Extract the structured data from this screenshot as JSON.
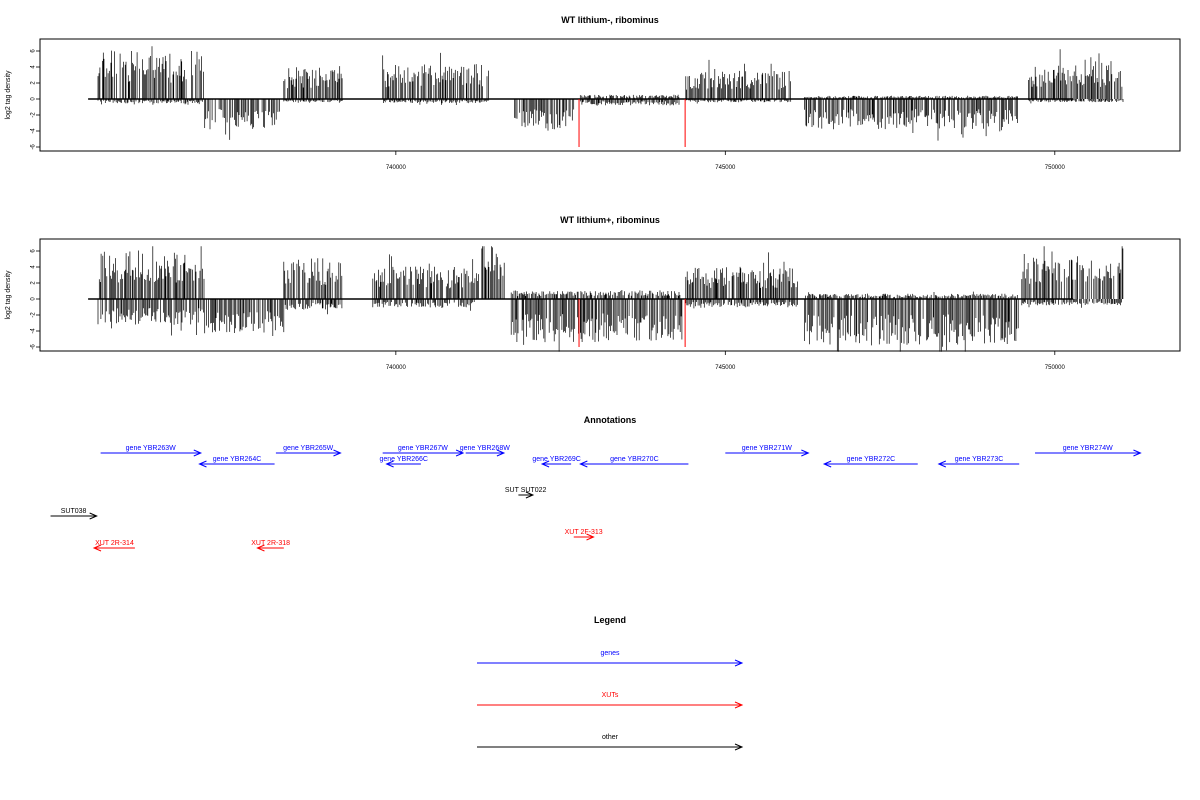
{
  "panels": [
    {
      "title": "WT lithium-, ribominus",
      "ylabel": "log2 tag density",
      "yticks": [
        "-6",
        "-4",
        "-2",
        "0",
        "2",
        "4",
        "6"
      ],
      "xticks": [
        "740000",
        "745000",
        "750000"
      ]
    },
    {
      "title": "WT lithium+, ribominus",
      "ylabel": "log2 tag density",
      "yticks": [
        "-6",
        "-4",
        "-2",
        "0",
        "2",
        "4",
        "6"
      ],
      "xticks": [
        "740000",
        "745000",
        "750000"
      ]
    }
  ],
  "annotations": {
    "title": "Annotations",
    "features": [
      {
        "label": "gene YBR263W",
        "start": 735520,
        "end": 737040,
        "strand": "+",
        "kind": "gene"
      },
      {
        "label": "gene YBR264C",
        "start": 737020,
        "end": 738160,
        "strand": "-",
        "kind": "gene"
      },
      {
        "label": "gene YBR265W",
        "start": 738180,
        "end": 739160,
        "strand": "+",
        "kind": "gene"
      },
      {
        "label": "gene YBR266C",
        "start": 739860,
        "end": 740380,
        "strand": "-",
        "kind": "gene"
      },
      {
        "label": "gene YBR267W",
        "start": 739800,
        "end": 741020,
        "strand": "+",
        "kind": "gene"
      },
      {
        "label": "gene YBR268W",
        "start": 741060,
        "end": 741640,
        "strand": "+",
        "kind": "gene"
      },
      {
        "label": "gene YBR269C",
        "start": 742220,
        "end": 742660,
        "strand": "-",
        "kind": "gene"
      },
      {
        "label": "gene YBR270C",
        "start": 742800,
        "end": 744440,
        "strand": "-",
        "kind": "gene"
      },
      {
        "label": "gene YBR271W",
        "start": 745000,
        "end": 746260,
        "strand": "+",
        "kind": "gene"
      },
      {
        "label": "gene YBR272C",
        "start": 746500,
        "end": 747920,
        "strand": "-",
        "kind": "gene"
      },
      {
        "label": "gene YBR273C",
        "start": 748240,
        "end": 749460,
        "strand": "-",
        "kind": "gene"
      },
      {
        "label": "gene YBR274W",
        "start": 749700,
        "end": 751300,
        "strand": "+",
        "kind": "gene"
      },
      {
        "label": "SUT SUT022",
        "start": 741860,
        "end": 742080,
        "strand": "+",
        "kind": "other"
      },
      {
        "label": "SUT038",
        "start": 734760,
        "end": 735460,
        "strand": "+",
        "kind": "other"
      },
      {
        "label": "XUT 2R-314",
        "start": 735420,
        "end": 736040,
        "strand": "-",
        "kind": "XUT"
      },
      {
        "label": "XUT 2R-318",
        "start": 737900,
        "end": 738300,
        "strand": "-",
        "kind": "XUT"
      },
      {
        "label": "XUT 2F-313",
        "start": 742700,
        "end": 743000,
        "strand": "+",
        "kind": "XUT"
      }
    ]
  },
  "legend": {
    "title": "Legend",
    "items": [
      {
        "label": "genes",
        "color": "#0000ff"
      },
      {
        "label": "XUTs",
        "color": "#ff0000"
      },
      {
        "label": "other",
        "color": "#000000"
      }
    ]
  },
  "chart_data": [
    {
      "type": "bar",
      "title": "WT lithium-, ribominus",
      "ylabel": "log2 tag density",
      "xlabel": "",
      "xlim": [
        734600,
        751900
      ],
      "ylim": [
        -6.5,
        7.5
      ],
      "xticks": [
        740000,
        745000,
        750000
      ],
      "yticks": [
        -6,
        -4,
        -2,
        0,
        2,
        4,
        6
      ],
      "baseline": [
        735330,
        750280
      ],
      "highlight_color": "#ff0000",
      "highlights": [
        {
          "x": 742780,
          "y": -6
        },
        {
          "x": 744390,
          "y": -6
        }
      ],
      "segments": [
        {
          "from": 735480,
          "to": 737080,
          "sign": 1,
          "level": 4.5
        },
        {
          "from": 735480,
          "to": 737080,
          "sign": -1,
          "level": 0.4
        },
        {
          "from": 737100,
          "to": 738250,
          "sign": -1,
          "level": 2.8
        },
        {
          "from": 738300,
          "to": 739200,
          "sign": 1,
          "level": 3.0
        },
        {
          "from": 738300,
          "to": 739200,
          "sign": -1,
          "level": 0.3
        },
        {
          "from": 739800,
          "to": 741420,
          "sign": 1,
          "level": 3.2
        },
        {
          "from": 739800,
          "to": 741420,
          "sign": -1,
          "level": 0.4
        },
        {
          "from": 741800,
          "to": 742700,
          "sign": -1,
          "level": 2.8
        },
        {
          "from": 742800,
          "to": 744300,
          "sign": 1,
          "level": 0.4
        },
        {
          "from": 742800,
          "to": 744300,
          "sign": -1,
          "level": 0.6
        },
        {
          "from": 744400,
          "to": 746000,
          "sign": 1,
          "level": 2.6
        },
        {
          "from": 744400,
          "to": 746000,
          "sign": -1,
          "level": 0.3
        },
        {
          "from": 746200,
          "to": 749450,
          "sign": -1,
          "level": 2.8
        },
        {
          "from": 746200,
          "to": 749450,
          "sign": 1,
          "level": 0.3
        },
        {
          "from": 749600,
          "to": 751050,
          "sign": 1,
          "level": 3.2
        },
        {
          "from": 749600,
          "to": 751050,
          "sign": -1,
          "level": 0.3
        }
      ]
    },
    {
      "type": "bar",
      "title": "WT lithium+, ribominus",
      "ylabel": "log2 tag density",
      "xlabel": "",
      "xlim": [
        734600,
        751900
      ],
      "ylim": [
        -6.5,
        7.5
      ],
      "xticks": [
        740000,
        745000,
        750000
      ],
      "yticks": [
        -6,
        -4,
        -2,
        0,
        2,
        4,
        6
      ],
      "baseline": [
        735330,
        750280
      ],
      "highlight_color": "#ff0000",
      "highlights": [
        {
          "x": 742780,
          "y": -6
        },
        {
          "x": 744390,
          "y": -6
        }
      ],
      "segments": [
        {
          "from": 735480,
          "to": 737100,
          "sign": 1,
          "level": 4.5
        },
        {
          "from": 735480,
          "to": 737100,
          "sign": -1,
          "level": 2.4
        },
        {
          "from": 737100,
          "to": 738300,
          "sign": -1,
          "level": 3.2
        },
        {
          "from": 738300,
          "to": 739200,
          "sign": 1,
          "level": 3.8
        },
        {
          "from": 738300,
          "to": 739200,
          "sign": -1,
          "level": 1.0
        },
        {
          "from": 739650,
          "to": 741200,
          "sign": 1,
          "level": 3.0
        },
        {
          "from": 739650,
          "to": 741200,
          "sign": -1,
          "level": 0.8
        },
        {
          "from": 741200,
          "to": 741650,
          "sign": 1,
          "level": 5.0
        },
        {
          "from": 741750,
          "to": 744350,
          "sign": -1,
          "level": 4.0
        },
        {
          "from": 741750,
          "to": 744350,
          "sign": 1,
          "level": 0.8
        },
        {
          "from": 744400,
          "to": 746100,
          "sign": 1,
          "level": 3.0
        },
        {
          "from": 744400,
          "to": 746100,
          "sign": -1,
          "level": 0.8
        },
        {
          "from": 746200,
          "to": 749450,
          "sign": -1,
          "level": 4.3
        },
        {
          "from": 746200,
          "to": 749450,
          "sign": 1,
          "level": 0.5
        },
        {
          "from": 749500,
          "to": 751050,
          "sign": 1,
          "level": 4.2
        },
        {
          "from": 749500,
          "to": 751050,
          "sign": -1,
          "level": 0.6
        }
      ]
    }
  ]
}
